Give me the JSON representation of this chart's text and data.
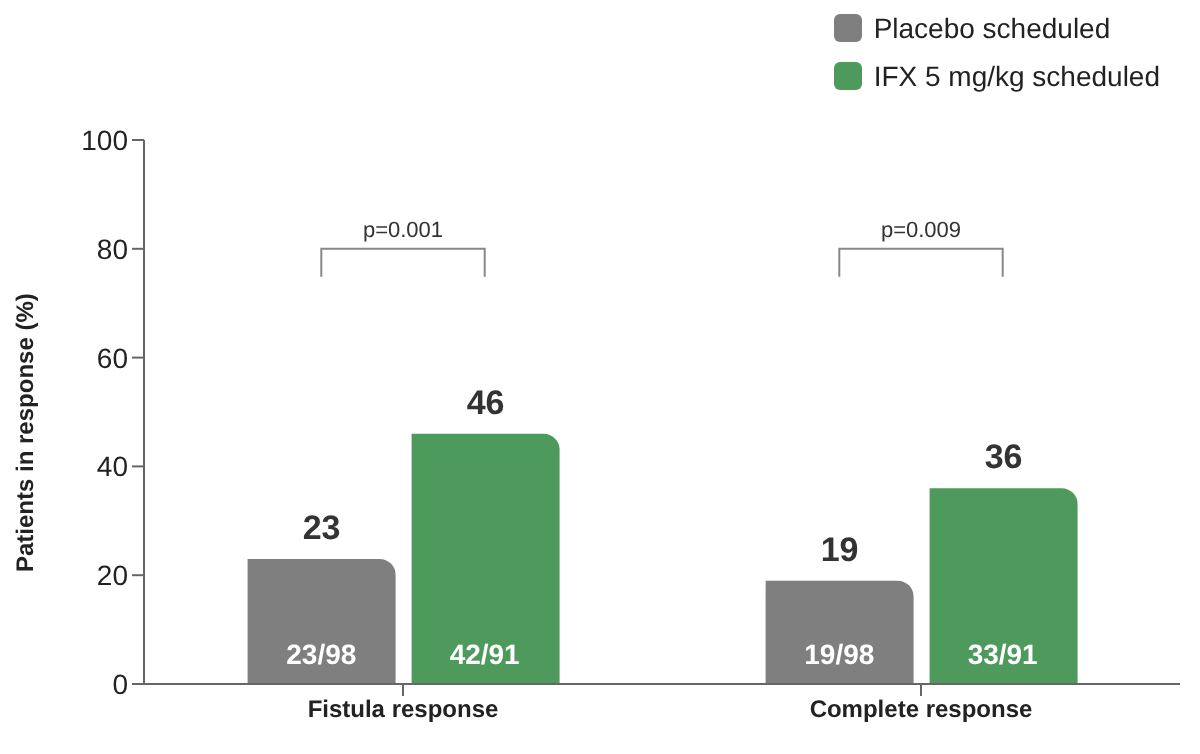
{
  "chart_data": {
    "type": "bar",
    "ylabel": "Patients in response (%)",
    "categories": [
      "Fistula response",
      "Complete response"
    ],
    "series": [
      {
        "name": "Placebo scheduled",
        "color": "#7f7f7f",
        "values": [
          23,
          19
        ]
      },
      {
        "name": "IFX 5 mg/kg scheduled",
        "color": "#4e9a5c",
        "values": [
          46,
          36
        ]
      }
    ],
    "ylim": [
      0,
      100
    ],
    "yticks": [
      0,
      20,
      40,
      60,
      80,
      100
    ],
    "grid": false,
    "legend": "top right",
    "data_labels": true,
    "annotations": [
      "p=0.001",
      "p=0.009",
      "23/98",
      "42/91",
      "19/98",
      "33/91"
    ]
  }
}
